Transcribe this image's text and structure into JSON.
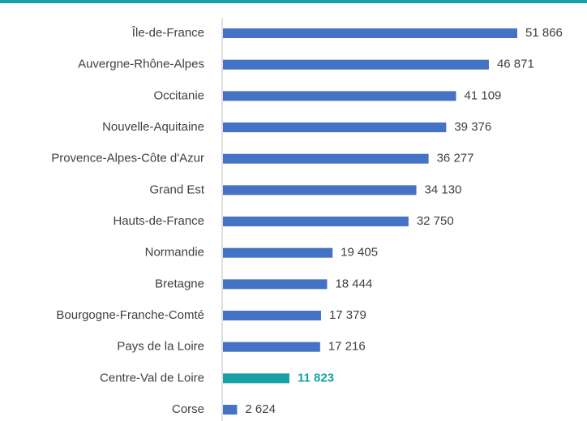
{
  "chart_data": {
    "type": "barh",
    "categories": [
      "Île-de-France",
      "Auvergne-Rhône-Alpes",
      "Occitanie",
      "Nouvelle-Aquitaine",
      "Provence-Alpes-Côte d'Azur",
      "Grand Est",
      "Hauts-de-France",
      "Normandie",
      "Bretagne",
      "Bourgogne-Franche-Comté",
      "Pays de la Loire",
      "Centre-Val de Loire",
      "Corse"
    ],
    "values": [
      51866,
      46871,
      41109,
      39376,
      36277,
      34130,
      32750,
      19405,
      18444,
      17379,
      17216,
      11823,
      2624
    ],
    "value_labels": [
      "51 866",
      "46 871",
      "41 109",
      "39 376",
      "36 277",
      "34 130",
      "32 750",
      "19 405",
      "18 444",
      "17 379",
      "17 216",
      "11 823",
      "2 624"
    ],
    "color": "#4472c4",
    "colors": [
      "#4472c4",
      "#4472c4",
      "#4472c4",
      "#4472c4",
      "#4472c4",
      "#4472c4",
      "#4472c4",
      "#4472c4",
      "#4472c4",
      "#4472c4",
      "#4472c4",
      "#17a0a6",
      "#4472c4"
    ]
  }
}
